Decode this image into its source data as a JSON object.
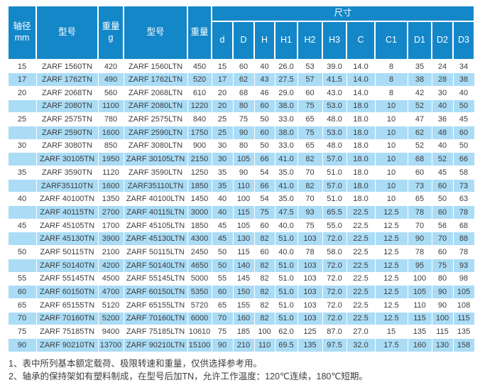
{
  "colors": {
    "header_bg": "#1487c8",
    "header_text": "#ffffff",
    "row_alt_bg": "#aadcf6",
    "body_text": "#3c3c3c",
    "note_text": "#3c3c3c"
  },
  "table": {
    "header": {
      "shaft_line1": "轴径",
      "shaft_line2": "mm",
      "model_tn": "型号",
      "weight_line1": "重量",
      "weight_line2": "g",
      "model_ltn": "型号",
      "weight_ltn": "重量",
      "dims_group": "尺寸",
      "dim_cols": [
        "d",
        "D",
        "H",
        "H1",
        "H2",
        "H3",
        "C",
        "C1",
        "D1",
        "D2",
        "D3"
      ]
    },
    "rows": [
      {
        "shaft": "15",
        "model_tn": "ZARF 1560TN",
        "weight_tn": "420",
        "model_ltn": "ZARF 1560LTN",
        "weight_ltn": "450",
        "dims": [
          "15",
          "60",
          "40",
          "26.0",
          "53",
          "39.0",
          "14.0",
          "8",
          "35",
          "24",
          "34"
        ]
      },
      {
        "shaft": "17",
        "model_tn": "ZARF 1762TN",
        "weight_tn": "490",
        "model_ltn": "ZARF 1762LTN",
        "weight_ltn": "520",
        "dims": [
          "17",
          "62",
          "43",
          "27.5",
          "57",
          "41.5",
          "14.0",
          "8",
          "38",
          "28",
          "38"
        ]
      },
      {
        "shaft": "20",
        "model_tn": "ZARF 2068TN",
        "weight_tn": "560",
        "model_ltn": "ZARF 2068LTN",
        "weight_ltn": "610",
        "dims": [
          "20",
          "68",
          "46",
          "29.0",
          "60",
          "43.0",
          "14.0",
          "8",
          "42",
          "30",
          "40"
        ]
      },
      {
        "shaft": "",
        "model_tn": "ZARF 2080TN",
        "weight_tn": "1100",
        "model_ltn": "ZARF 2080LTN",
        "weight_ltn": "1220",
        "dims": [
          "20",
          "80",
          "60",
          "38.0",
          "75",
          "53.0",
          "18.0",
          "10",
          "52",
          "40",
          "50"
        ]
      },
      {
        "shaft": "25",
        "model_tn": "ZARF 2575TN",
        "weight_tn": "780",
        "model_ltn": "ZARF 2575LTN",
        "weight_ltn": "840",
        "dims": [
          "25",
          "75",
          "50",
          "33.0",
          "65",
          "48.0",
          "18.0",
          "10",
          "47",
          "36",
          "45"
        ]
      },
      {
        "shaft": "",
        "model_tn": "ZARF 2590TN",
        "weight_tn": "1600",
        "model_ltn": "ZARF 2590LTN",
        "weight_ltn": "1750",
        "dims": [
          "25",
          "90",
          "60",
          "38.0",
          "75",
          "53.0",
          "18.0",
          "10",
          "62",
          "48",
          "60"
        ]
      },
      {
        "shaft": "30",
        "model_tn": "ZARF 3080TN",
        "weight_tn": "850",
        "model_ltn": "ZARF 3080LTN",
        "weight_ltn": "900",
        "dims": [
          "30",
          "80",
          "50",
          "33.0",
          "65",
          "48.0",
          "18.0",
          "10",
          "52",
          "40",
          "50"
        ]
      },
      {
        "shaft": "",
        "model_tn": "ZARF 30105TN",
        "weight_tn": "1950",
        "model_ltn": "ZARF 30105LTN",
        "weight_ltn": "2150",
        "dims": [
          "30",
          "105",
          "66",
          "41.0",
          "82",
          "57.0",
          "18.0",
          "10",
          "68",
          "52",
          "66"
        ]
      },
      {
        "shaft": "35",
        "model_tn": "ZARF 3590TN",
        "weight_tn": "1120",
        "model_ltn": "ZARF 3590LTN",
        "weight_ltn": "1250",
        "dims": [
          "35",
          "90",
          "54",
          "35.0",
          "70",
          "51.0",
          "18.0",
          "10",
          "60",
          "45",
          "58"
        ]
      },
      {
        "shaft": "",
        "model_tn": "ZARF35110TN",
        "weight_tn": "1600",
        "model_ltn": "ZARF35110LTN",
        "weight_ltn": "1850",
        "dims": [
          "35",
          "110",
          "66",
          "41.0",
          "82",
          "57.0",
          "18.0",
          "10",
          "73",
          "60",
          "73"
        ]
      },
      {
        "shaft": "40",
        "model_tn": "ZARF 40100TN",
        "weight_tn": "1350",
        "model_ltn": "ZARF 40100LTN",
        "weight_ltn": "1450",
        "dims": [
          "40",
          "100",
          "54",
          "35.0",
          "70",
          "51.0",
          "18.0",
          "10",
          "65",
          "50",
          "63"
        ]
      },
      {
        "shaft": "",
        "model_tn": "ZARF 40115TN",
        "weight_tn": "2700",
        "model_ltn": "ZARF 40115LTN",
        "weight_ltn": "3000",
        "dims": [
          "40",
          "115",
          "75",
          "47.5",
          "93",
          "65.5",
          "22.5",
          "12.5",
          "78",
          "60",
          "78"
        ]
      },
      {
        "shaft": "45",
        "model_tn": "ZARF 45105TN",
        "weight_tn": "1700",
        "model_ltn": "ZARF 45105LTN",
        "weight_ltn": "1850",
        "dims": [
          "45",
          "105",
          "60",
          "40.0",
          "75",
          "55.0",
          "22.5",
          "12.5",
          "70",
          "56",
          "68"
        ]
      },
      {
        "shaft": "",
        "model_tn": "ZARF 45130TN",
        "weight_tn": "3900",
        "model_ltn": "ZARF 45130LTN",
        "weight_ltn": "4300",
        "dims": [
          "45",
          "130",
          "82",
          "51.0",
          "103",
          "72.0",
          "22.5",
          "12.5",
          "90",
          "70",
          "88"
        ]
      },
      {
        "shaft": "50",
        "model_tn": "ZARF 50115TN",
        "weight_tn": "2100",
        "model_ltn": "ZARF 50115LTN",
        "weight_ltn": "2450",
        "dims": [
          "50",
          "115",
          "60",
          "40.0",
          "78",
          "58.0",
          "22.5",
          "12.5",
          "78",
          "60",
          "78"
        ]
      },
      {
        "shaft": "",
        "model_tn": "ZARF 50140TN",
        "weight_tn": "4200",
        "model_ltn": "ZARF 50140LTN",
        "weight_ltn": "4650",
        "dims": [
          "50",
          "140",
          "82",
          "51.0",
          "103",
          "72.0",
          "22.5",
          "12.5",
          "95",
          "75",
          "93"
        ]
      },
      {
        "shaft": "55",
        "model_tn": "ZARF 55145TN",
        "weight_tn": "4500",
        "model_ltn": "ZARF 55145LTN",
        "weight_ltn": "5000",
        "dims": [
          "55",
          "145",
          "82",
          "51.0",
          "103",
          "72.0",
          "22.5",
          "12.5",
          "100",
          "80",
          "98"
        ]
      },
      {
        "shaft": "60",
        "model_tn": "ZARF 60150TN",
        "weight_tn": "4700",
        "model_ltn": "ZARF 60150LTN",
        "weight_ltn": "5350",
        "dims": [
          "60",
          "150",
          "82",
          "51.0",
          "103",
          "72.0",
          "22.5",
          "12.5",
          "105",
          "90",
          "105"
        ]
      },
      {
        "shaft": "65",
        "model_tn": "ZARF 65155TN",
        "weight_tn": "5120",
        "model_ltn": "ZARF 65155LTN",
        "weight_ltn": "5720",
        "dims": [
          "65",
          "155",
          "82",
          "51.0",
          "103",
          "72.0",
          "22.5",
          "12.5",
          "110",
          "90",
          "108"
        ]
      },
      {
        "shaft": "70",
        "model_tn": "ZARF 70160TN",
        "weight_tn": "5200",
        "model_ltn": "ZARF 70160LTN",
        "weight_ltn": "6000",
        "dims": [
          "70",
          "160",
          "82",
          "51.0",
          "103",
          "72.0",
          "22.5",
          "12.5",
          "115",
          "100",
          "115"
        ]
      },
      {
        "shaft": "75",
        "model_tn": "ZARF 75185TN",
        "weight_tn": "9400",
        "model_ltn": "ZARF 75185LTN",
        "weight_ltn": "10610",
        "dims": [
          "75",
          "185",
          "100",
          "62.0",
          "125",
          "87.0",
          "27.0",
          "15",
          "135",
          "115",
          "135"
        ]
      },
      {
        "shaft": "90",
        "model_tn": "ZARF 90210TN",
        "weight_tn": "13700",
        "model_ltn": "ZARF 90210LTN",
        "weight_ltn": "15100",
        "dims": [
          "90",
          "210",
          "110",
          "69.5",
          "135",
          "97.5",
          "32.0",
          "17.5",
          "160",
          "130",
          "158"
        ]
      }
    ]
  },
  "notes": [
    "1、表中所列基本额定载荷、极限转速和重量，仅供选择参考用。",
    "2、轴承的保持架如有塑料制成，在型号后加TN，允许工作温度：120℃连续，180℃短期。"
  ]
}
